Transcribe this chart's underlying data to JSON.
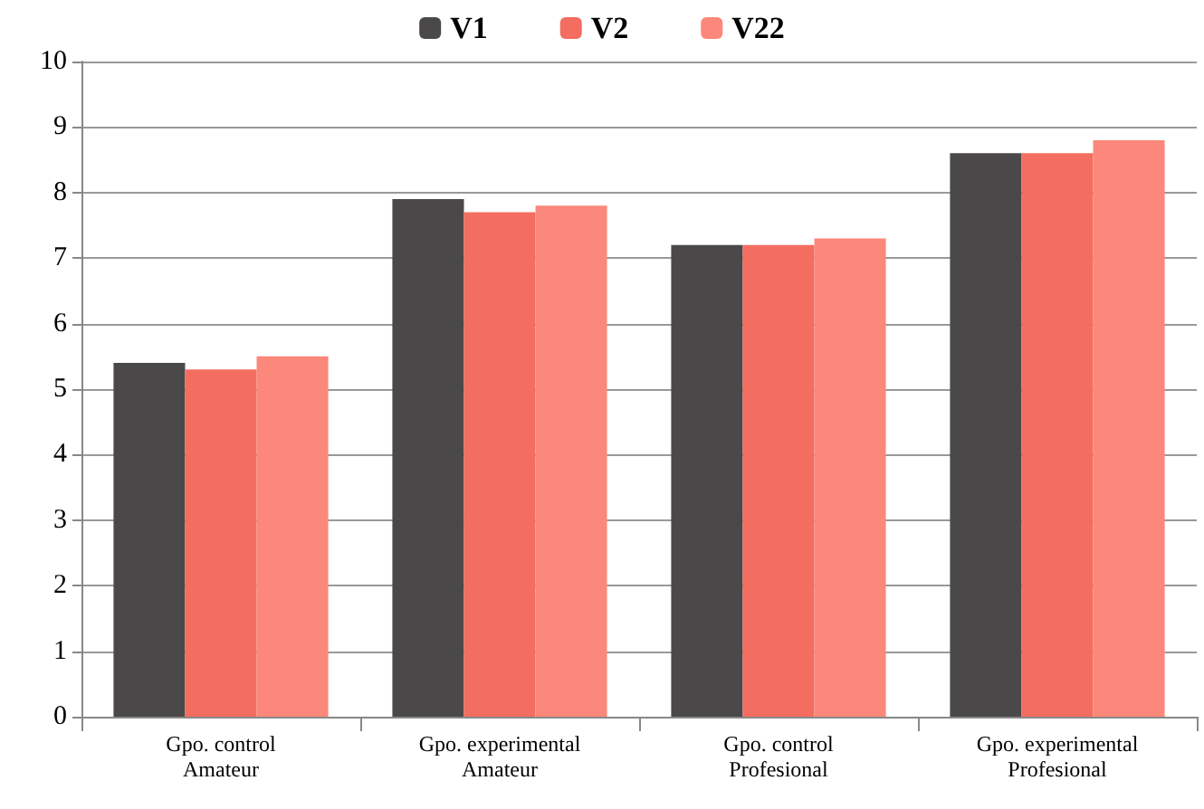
{
  "chart_data": {
    "type": "bar",
    "categories": [
      "Gpo. control\nAmateur",
      "Gpo. experimental\nAmateur",
      "Gpo. control\nProfesional",
      "Gpo. experimental\nProfesional"
    ],
    "series": [
      {
        "name": "V1",
        "color": "#4a4849",
        "values": [
          5.4,
          7.9,
          7.2,
          8.6
        ]
      },
      {
        "name": "V2",
        "color": "#f36d60",
        "values": [
          5.3,
          7.7,
          7.2,
          8.6
        ]
      },
      {
        "name": "V22",
        "color": "#fb887a",
        "values": [
          5.5,
          7.8,
          7.3,
          8.8
        ]
      }
    ],
    "ylim": [
      0,
      10
    ],
    "yticks": [
      0,
      1,
      2,
      3,
      4,
      5,
      6,
      7,
      8,
      9,
      10
    ],
    "grid": "y",
    "legend": "top"
  }
}
